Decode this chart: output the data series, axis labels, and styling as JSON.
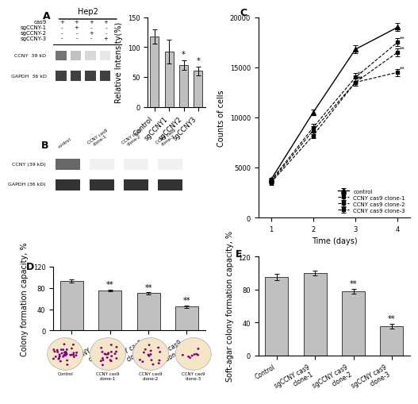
{
  "panel_A_bar": {
    "categories": [
      "Control",
      "sgCCNY1",
      "sgCCNY2",
      "sgCCNY3"
    ],
    "values": [
      118,
      93,
      70,
      60
    ],
    "errors": [
      12,
      20,
      8,
      7
    ],
    "bar_color": "#c0c0c0",
    "ylabel": "Relative Intensity(%)",
    "ylim": [
      0,
      150
    ],
    "yticks": [
      0,
      50,
      100,
      150
    ],
    "sig": [
      "",
      "",
      "*",
      "*"
    ]
  },
  "panel_A_wb": {
    "title": "Hep2",
    "rows": [
      "CCNY  39 kD",
      "GAPDH  36 kD"
    ],
    "cols": [
      "cas9\n+",
      "sgCCNY-1\n+",
      "sgCCNY-2\n+",
      "sgCCNY-3\n+"
    ]
  },
  "panel_B_wb": {
    "title": "",
    "rows": [
      "CCNY (39 kD)",
      "GAPDH (36 kD)"
    ],
    "cols": [
      "control",
      "CCNY cas9 clone-1",
      "CCNY cas9 clone-2",
      "CCNY cas9 clone-3"
    ]
  },
  "panel_C": {
    "time": [
      1,
      2,
      3,
      4
    ],
    "control": [
      3800,
      10500,
      16800,
      19000
    ],
    "clone1": [
      3700,
      9000,
      14000,
      17500
    ],
    "clone2": [
      3600,
      8700,
      13500,
      16500
    ],
    "clone3": [
      3500,
      8200,
      13500,
      14500
    ],
    "control_err": [
      150,
      300,
      400,
      400
    ],
    "clone1_err": [
      200,
      400,
      400,
      400
    ],
    "clone2_err": [
      200,
      400,
      350,
      400
    ],
    "clone3_err": [
      200,
      300,
      350,
      350
    ],
    "ylabel": "Counts of cells",
    "xlabel": "Time (days)",
    "ylim": [
      0,
      20000
    ],
    "yticks": [
      0,
      5000,
      10000,
      15000,
      20000
    ],
    "legend": [
      "control",
      "CCNY cas9 clone-1",
      "CCNY cas9 clone-2",
      "CCNY cas9 clone-3"
    ]
  },
  "panel_D": {
    "categories": [
      "Control",
      "CCNY cas9\nclone-1",
      "CCNY cas9\nclone-2",
      "CCNY cas9\nclone-3"
    ],
    "values": [
      93,
      75,
      70,
      45
    ],
    "errors": [
      3,
      2,
      2,
      2
    ],
    "bar_color": "#c0c0c0",
    "ylabel": "Colony formation capacity, %",
    "ylim": [
      0,
      120
    ],
    "yticks": [
      0,
      40,
      80,
      120
    ],
    "sig": [
      "",
      "**",
      "**",
      "**"
    ]
  },
  "panel_E": {
    "categories": [
      "Control",
      "sgCCNY cas9\nclone-1",
      "sgCCNY cas9\nclone-2",
      "sgCCNY cas9\nclone-3"
    ],
    "values": [
      95,
      100,
      78,
      35
    ],
    "errors": [
      4,
      3,
      3,
      3
    ],
    "bar_color": "#c0c0c0",
    "ylabel": "Soft-agar colony formation capacity, %",
    "ylim": [
      0,
      120
    ],
    "yticks": [
      0,
      40,
      80,
      120
    ],
    "sig": [
      "",
      "",
      "**",
      "**"
    ]
  },
  "label_fontsize": 7,
  "tick_fontsize": 6,
  "sig_fontsize": 7
}
